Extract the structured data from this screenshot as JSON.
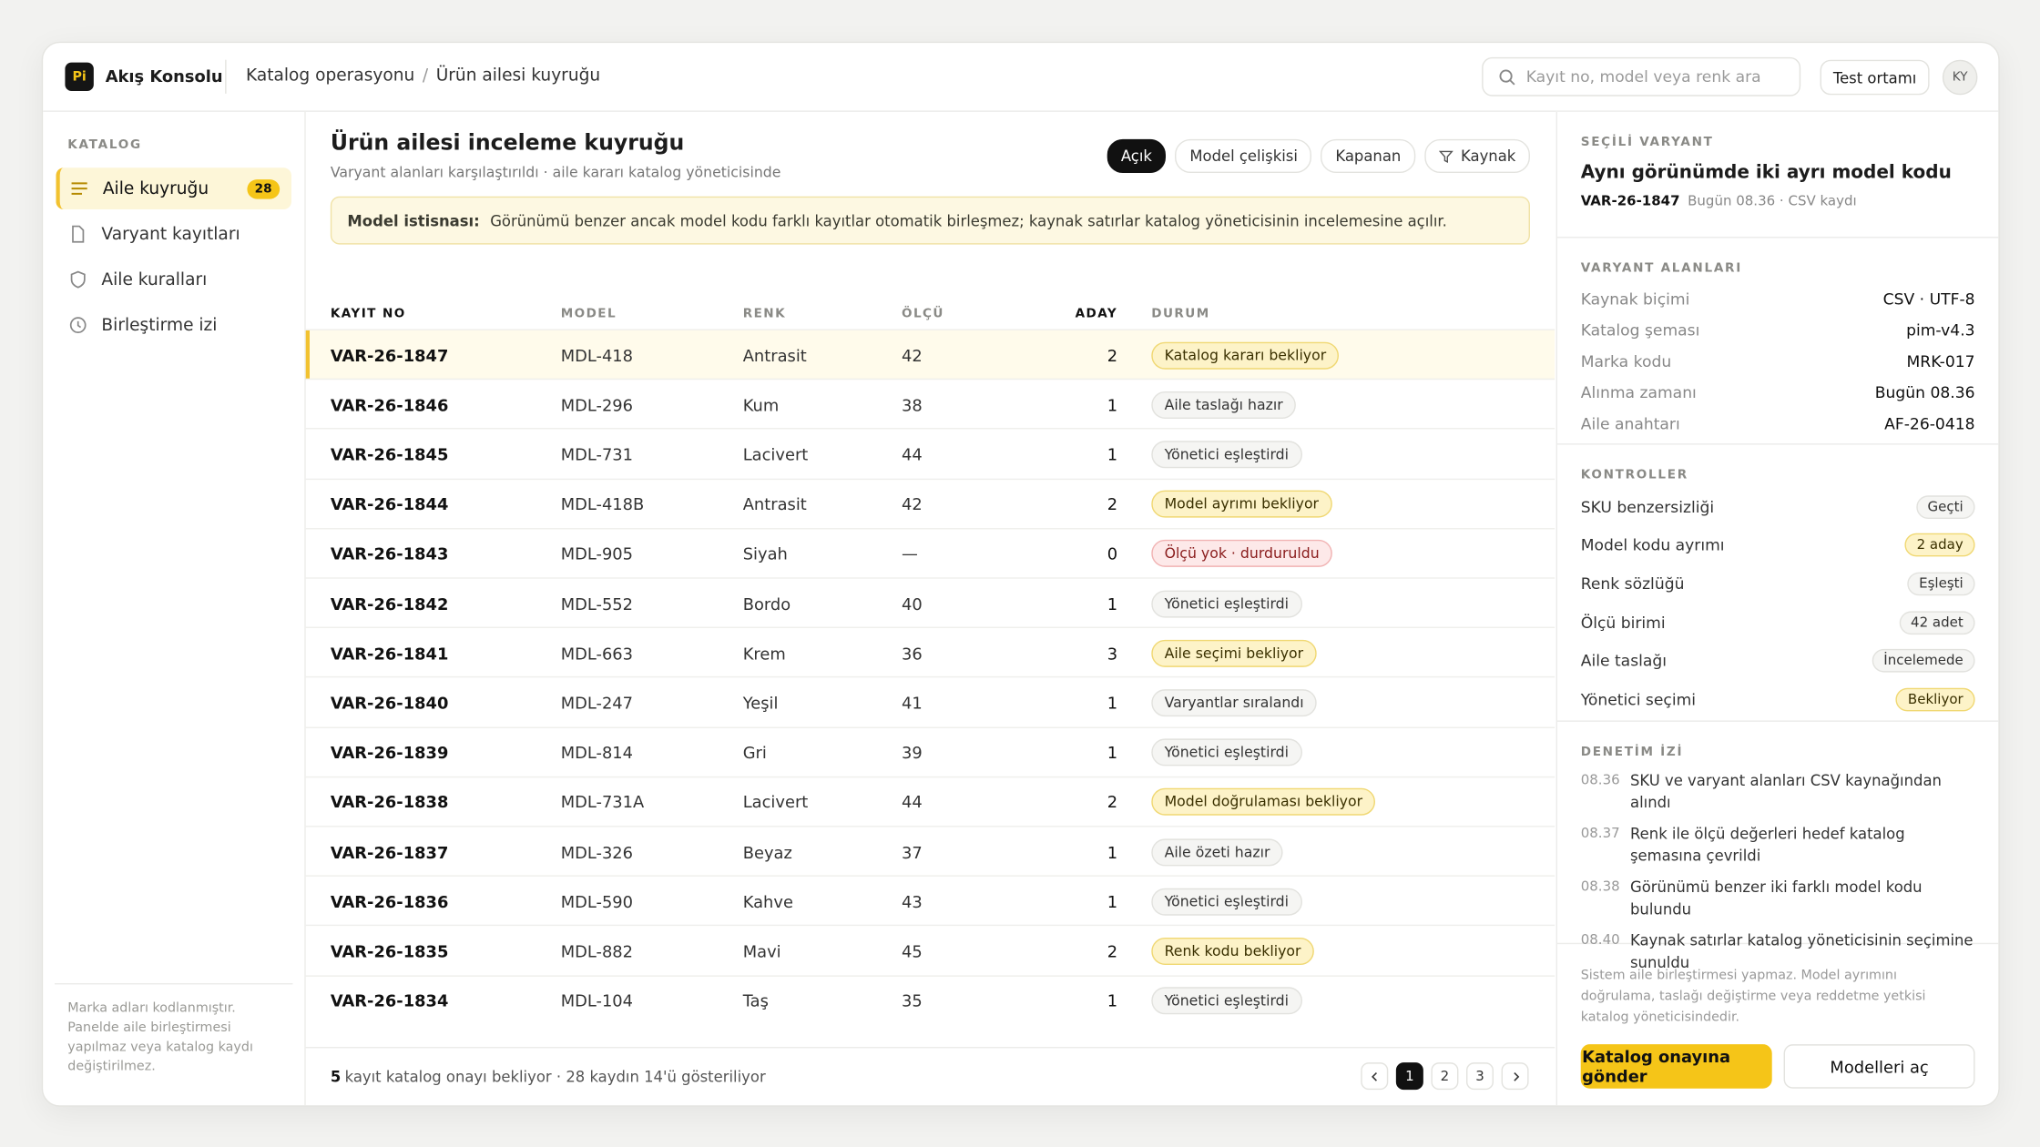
{
  "app": {
    "logo": "Pi",
    "name": "Akış Konsolu"
  },
  "breadcrumb": [
    "Katalog operasyonu",
    "Ürün ailesi kuyruğu"
  ],
  "search_placeholder": "Kayıt no, model veya renk ara",
  "environment": "Test ortamı",
  "avatar": "KY",
  "sidebar": {
    "section": "KATALOG",
    "items": [
      {
        "label": "Aile kuyruğu",
        "badge": 28
      },
      {
        "label": "Varyant kayıtları"
      },
      {
        "label": "Aile kuralları"
      },
      {
        "label": "Birleştirme izi"
      }
    ],
    "note": "Marka adları kodlanmıştır. Panelde aile birleştirmesi yapılmaz veya katalog kaydı değiştirilmez."
  },
  "main": {
    "title": "Ürün ailesi inceleme kuyruğu",
    "subtitle": "Varyant alanları karşılaştırıldı · aile kararı katalog yöneticisinde",
    "filters": [
      "Açık",
      "Model çelişkisi",
      "Kapanan",
      "Kaynak"
    ],
    "notice": {
      "label": "Model istisnası:",
      "text": "Görünümü benzer ancak model kodu farklı kayıtlar otomatik birleşmez; kaynak satırlar katalog yöneticisinin incelemesine açılır."
    },
    "columns": [
      "KAYIT NO",
      "MODEL",
      "RENK",
      "ÖLÇÜ",
      "ADAY",
      "DURUM"
    ],
    "rows": [
      {
        "id": "VAR-26-1847",
        "model": "MDL-418",
        "color": "Antrasit",
        "size": 42,
        "candidates": 2,
        "status": "Katalog kararı bekliyor",
        "tone": "warn"
      },
      {
        "id": "VAR-26-1846",
        "model": "MDL-296",
        "color": "Kum",
        "size": 38,
        "candidates": 1,
        "status": "Aile taslağı hazır",
        "tone": "neutral"
      },
      {
        "id": "VAR-26-1845",
        "model": "MDL-731",
        "color": "Lacivert",
        "size": 44,
        "candidates": 1,
        "status": "Yönetici eşleştirdi",
        "tone": "neutral"
      },
      {
        "id": "VAR-26-1844",
        "model": "MDL-418B",
        "color": "Antrasit",
        "size": 42,
        "candidates": 2,
        "status": "Model ayrımı bekliyor",
        "tone": "warn"
      },
      {
        "id": "VAR-26-1843",
        "model": "MDL-905",
        "color": "Siyah",
        "size": "—",
        "candidates": 0,
        "status": "Ölçü yok · durduruldu",
        "tone": "danger"
      },
      {
        "id": "VAR-26-1842",
        "model": "MDL-552",
        "color": "Bordo",
        "size": 40,
        "candidates": 1,
        "status": "Yönetici eşleştirdi",
        "tone": "neutral"
      },
      {
        "id": "VAR-26-1841",
        "model": "MDL-663",
        "color": "Krem",
        "size": 36,
        "candidates": 3,
        "status": "Aile seçimi bekliyor",
        "tone": "warn"
      },
      {
        "id": "VAR-26-1840",
        "model": "MDL-247",
        "color": "Yeşil",
        "size": 41,
        "candidates": 1,
        "status": "Varyantlar sıralandı",
        "tone": "neutral"
      },
      {
        "id": "VAR-26-1839",
        "model": "MDL-814",
        "color": "Gri",
        "size": 39,
        "candidates": 1,
        "status": "Yönetici eşleştirdi",
        "tone": "neutral"
      },
      {
        "id": "VAR-26-1838",
        "model": "MDL-731A",
        "color": "Lacivert",
        "size": 44,
        "candidates": 2,
        "status": "Model doğrulaması bekliyor",
        "tone": "warn"
      },
      {
        "id": "VAR-26-1837",
        "model": "MDL-326",
        "color": "Beyaz",
        "size": 37,
        "candidates": 1,
        "status": "Aile özeti hazır",
        "tone": "neutral"
      },
      {
        "id": "VAR-26-1836",
        "model": "MDL-590",
        "color": "Kahve",
        "size": 43,
        "candidates": 1,
        "status": "Yönetici eşleştirdi",
        "tone": "neutral"
      },
      {
        "id": "VAR-26-1835",
        "model": "MDL-882",
        "color": "Mavi",
        "size": 45,
        "candidates": 2,
        "status": "Renk kodu bekliyor",
        "tone": "warn"
      },
      {
        "id": "VAR-26-1834",
        "model": "MDL-104",
        "color": "Taş",
        "size": 35,
        "candidates": 1,
        "status": "Yönetici eşleştirdi",
        "tone": "neutral"
      }
    ],
    "footer": {
      "count": 5,
      "text": "kayıt katalog onayı bekliyor · 28 kaydın 14'ü gösteriliyor"
    },
    "pages": [
      1,
      2,
      3
    ]
  },
  "panel": {
    "section": "SEÇİLİ VARYANT",
    "title": "Aynı görünümde iki ayrı model kodu",
    "id": "VAR-26-1847",
    "meta": "Bugün 08.36 · CSV kaydı",
    "fields_title": "VARYANT ALANLARI",
    "fields": [
      {
        "label": "Kaynak biçimi",
        "value": "CSV · UTF-8"
      },
      {
        "label": "Katalog şeması",
        "value": "pim-v4.3"
      },
      {
        "label": "Marka kodu",
        "value": "MRK-017"
      },
      {
        "label": "Alınma zamanı",
        "value": "Bugün 08.36"
      },
      {
        "label": "Aile anahtarı",
        "value": "AF-26-0418"
      }
    ],
    "checks_title": "KONTROLLER",
    "checks": [
      {
        "label": "SKU benzersizliği",
        "value": "Geçti",
        "tone": "neutral"
      },
      {
        "label": "Model kodu ayrımı",
        "value": "2 aday",
        "tone": "warn"
      },
      {
        "label": "Renk sözlüğü",
        "value": "Eşleşti",
        "tone": "neutral"
      },
      {
        "label": "Ölçü birimi",
        "value": "42 adet",
        "tone": "neutral"
      },
      {
        "label": "Aile taslağı",
        "value": "İncelemede",
        "tone": "neutral"
      },
      {
        "label": "Yönetici seçimi",
        "value": "Bekliyor",
        "tone": "warn"
      }
    ],
    "audit_title": "DENETİM İZİ",
    "audit": [
      {
        "time": "08.36",
        "text": "SKU ve varyant alanları CSV kaynağından alındı"
      },
      {
        "time": "08.37",
        "text": "Renk ile ölçü değerleri hedef katalog şemasına çevrildi"
      },
      {
        "time": "08.38",
        "text": "Görünümü benzer iki farklı model kodu bulundu"
      },
      {
        "time": "08.40",
        "text": "Kaynak satırlar katalog yöneticisinin seçimine sunuldu"
      }
    ],
    "note": "Sistem aile birleştirmesi yapmaz. Model ayrımını doğrulama, taslağı değiştirme veya reddetme yetkisi katalog yöneticisindedir.",
    "primary_action": "Katalog onayına gönder",
    "secondary_action": "Modelleri aç"
  }
}
